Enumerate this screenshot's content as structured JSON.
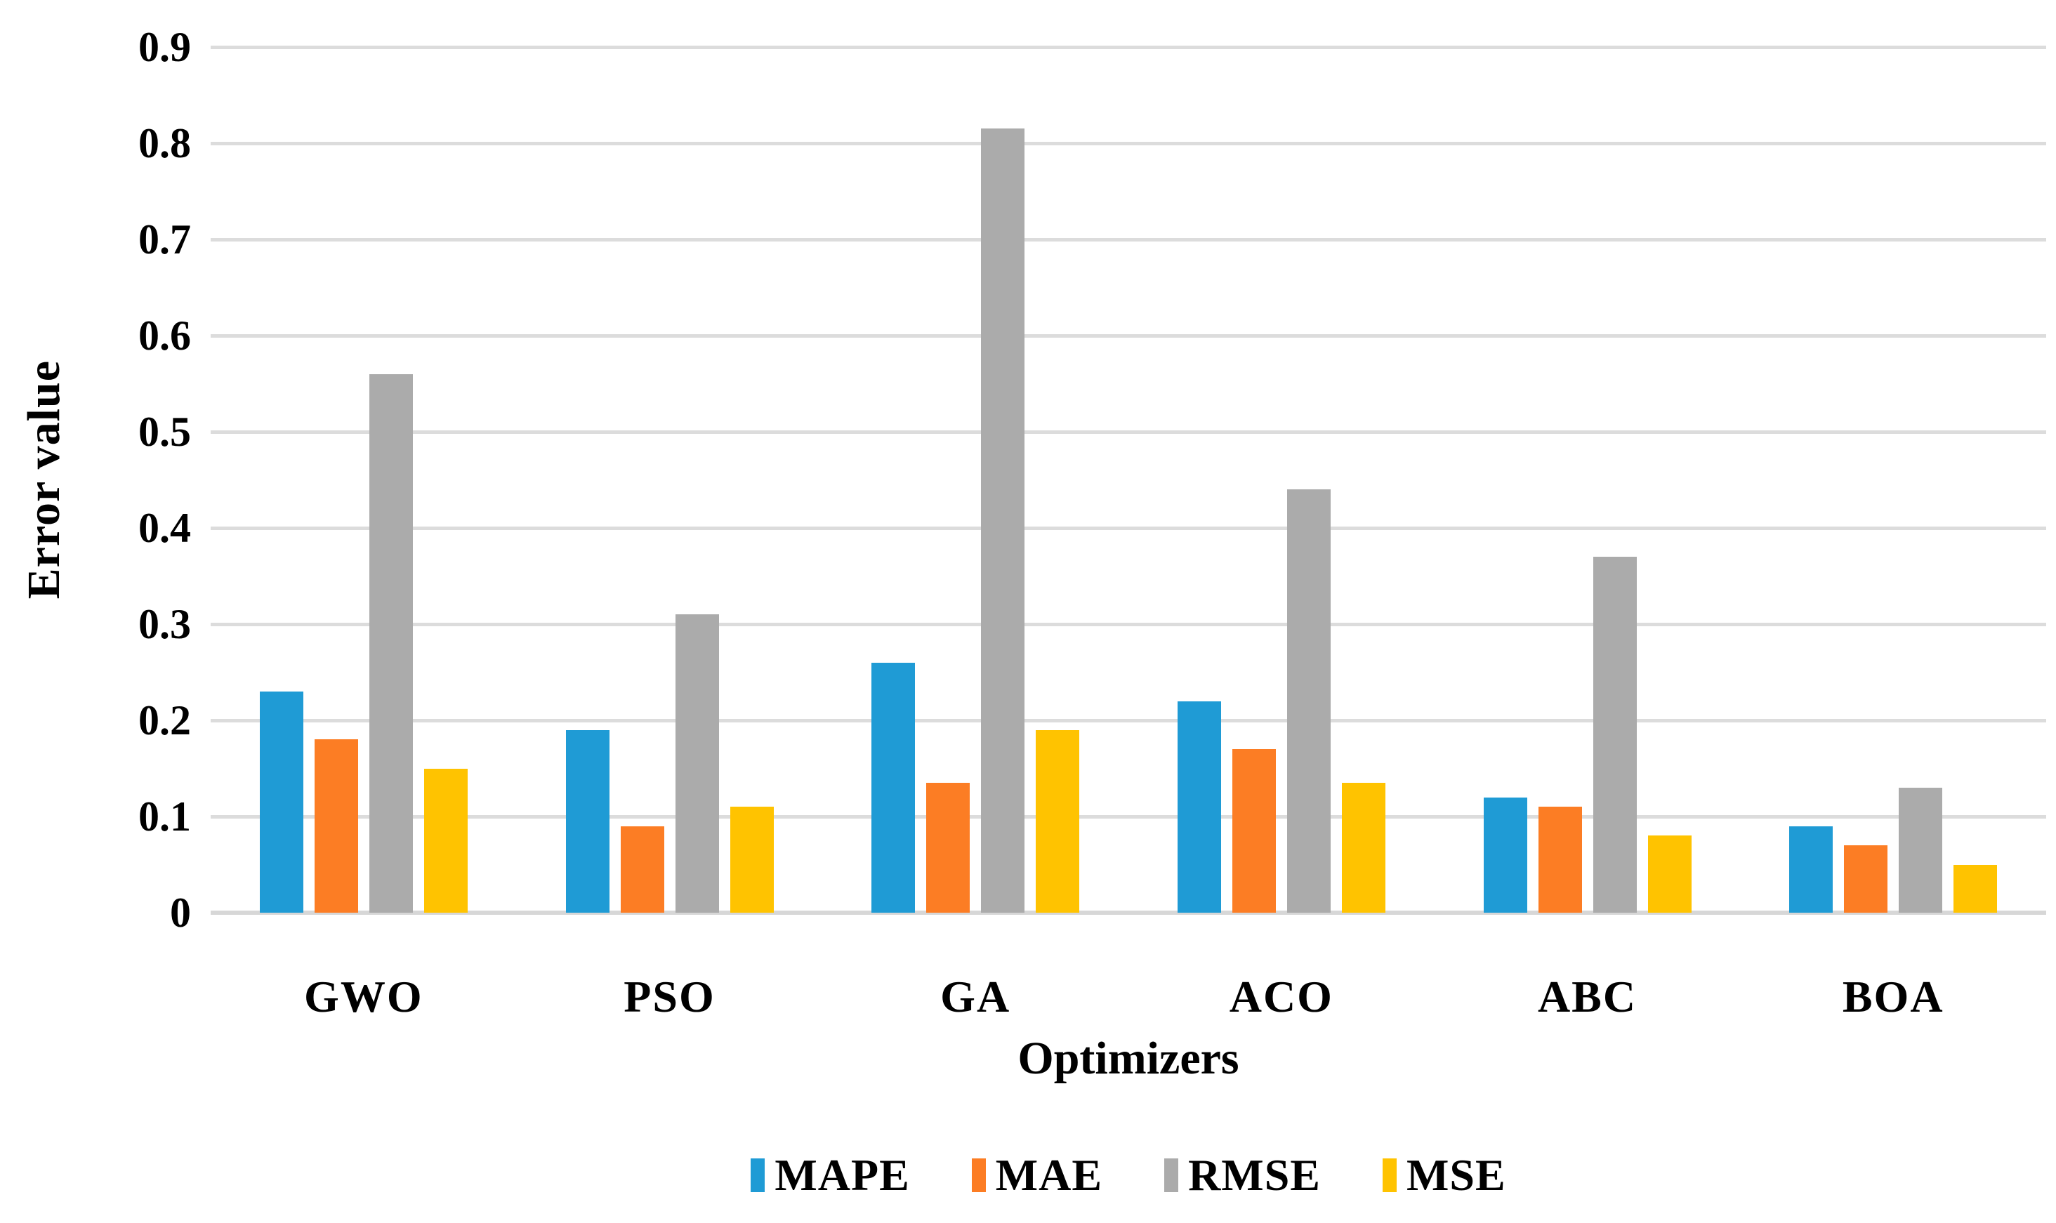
{
  "chart_data": {
    "type": "bar",
    "title": "",
    "xlabel": "Optimizers",
    "ylabel": "Error value",
    "categories": [
      "GWO",
      "PSO",
      "GA",
      "ACO",
      "ABC",
      "BOA"
    ],
    "series": [
      {
        "name": "MAPE",
        "color": "#1F9BD5",
        "values": [
          0.23,
          0.19,
          0.26,
          0.22,
          0.12,
          0.09
        ]
      },
      {
        "name": "MAE",
        "color": "#FC7D24",
        "values": [
          0.18,
          0.09,
          0.135,
          0.17,
          0.11,
          0.07
        ]
      },
      {
        "name": "RMSE",
        "color": "#ABABAB",
        "values": [
          0.56,
          0.31,
          0.815,
          0.44,
          0.37,
          0.13
        ]
      },
      {
        "name": "MSE",
        "color": "#FFC300",
        "values": [
          0.15,
          0.11,
          0.19,
          0.135,
          0.08,
          0.05
        ]
      }
    ],
    "ylim": [
      0,
      0.9
    ],
    "yticks": {
      "values": [
        0,
        0.1,
        0.2,
        0.3,
        0.4,
        0.5,
        0.6,
        0.7,
        0.8,
        0.9
      ],
      "labels": [
        "0",
        "0.1",
        "0.2",
        "0.3",
        "0.4",
        "0.5",
        "0.6",
        "0.7",
        "0.8",
        "0.9"
      ]
    },
    "grid": "horizontal",
    "gridline_color": "#DCDCDC",
    "baseline_color": "#D7D7D7",
    "legend_position": "bottom",
    "background": "#FFFFFF",
    "text_color": "#000000"
  }
}
